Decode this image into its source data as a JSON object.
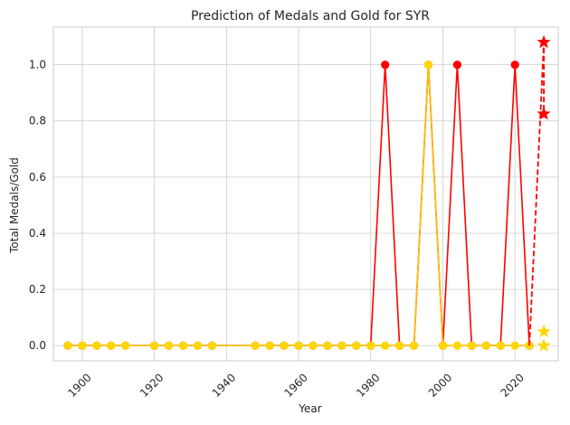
{
  "chart_data": {
    "type": "line",
    "title": "Prediction of Medals and Gold for SYR",
    "xlabel": "Year",
    "ylabel": "Total Medals/Gold",
    "xlim": [
      1892,
      2032
    ],
    "ylim": [
      -0.054,
      1.134
    ],
    "xticks": [
      1900,
      1920,
      1940,
      1960,
      1980,
      2000,
      2020
    ],
    "yticks": [
      0.0,
      0.2,
      0.4,
      0.6,
      0.8,
      1.0
    ],
    "ytick_labels": [
      "0.0",
      "0.2",
      "0.4",
      "0.6",
      "0.8",
      "1.0"
    ],
    "grid": true,
    "colors": {
      "medals": "#ff0000",
      "gold": "#ffd700",
      "gold_line": "#ffbf00",
      "grid": "#cccccc",
      "axes": "#cccccc"
    },
    "series": [
      {
        "key": "medals",
        "x": [
          1896,
          1900,
          1904,
          1908,
          1912,
          1920,
          1924,
          1928,
          1932,
          1936,
          1948,
          1952,
          1956,
          1960,
          1964,
          1968,
          1972,
          1976,
          1980,
          1984,
          1988,
          1992,
          1996,
          2000,
          2004,
          2008,
          2012,
          2016,
          2020,
          2024
        ],
        "y": [
          0,
          0,
          0,
          0,
          0,
          0,
          0,
          0,
          0,
          0,
          0,
          0,
          0,
          0,
          0,
          0,
          0,
          0,
          0,
          1,
          0,
          0,
          1,
          0,
          1,
          0,
          0,
          0,
          1,
          0
        ]
      },
      {
        "key": "gold",
        "x": [
          1896,
          1900,
          1904,
          1908,
          1912,
          1920,
          1924,
          1928,
          1932,
          1936,
          1948,
          1952,
          1956,
          1960,
          1964,
          1968,
          1972,
          1976,
          1980,
          1984,
          1988,
          1992,
          1996,
          2000,
          2004,
          2008,
          2012,
          2016,
          2020,
          2024
        ],
        "y": [
          0,
          0,
          0,
          0,
          0,
          0,
          0,
          0,
          0,
          0,
          0,
          0,
          0,
          0,
          0,
          0,
          0,
          0,
          0,
          0,
          0,
          0,
          1,
          0,
          0,
          0,
          0,
          0,
          0,
          0
        ]
      }
    ],
    "predictions": [
      {
        "key": "medals",
        "from": [
          2024,
          0
        ],
        "points": [
          [
            2028,
            1.08
          ],
          [
            2028,
            0.825
          ]
        ]
      },
      {
        "key": "gold",
        "points": [
          [
            2028,
            0.05
          ],
          [
            2028,
            0.0
          ]
        ]
      }
    ]
  }
}
